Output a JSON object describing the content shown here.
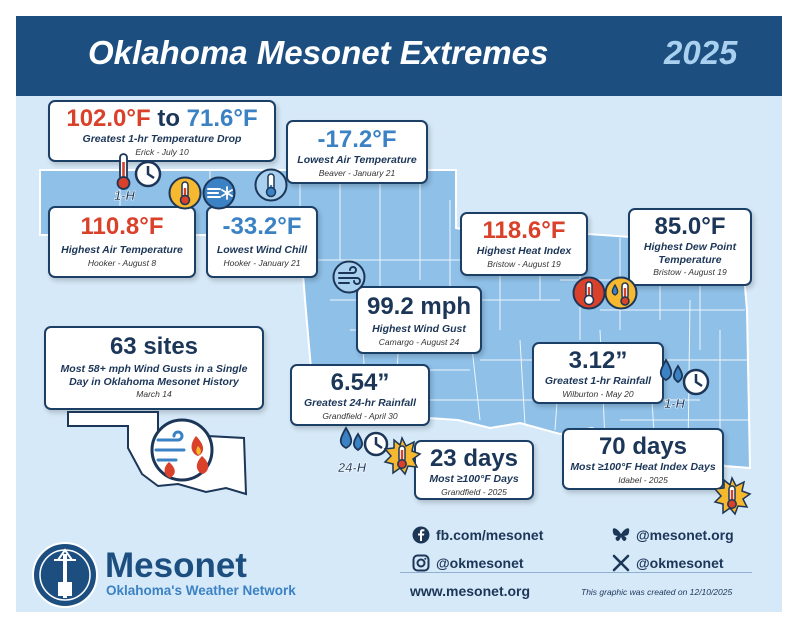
{
  "header": {
    "title": "Oklahoma Mesonet Extremes",
    "year": "2025"
  },
  "colors": {
    "header_bg": "#1c4f80",
    "panel_bg": "#d6e9f8",
    "map_fill": "#8fc0e8",
    "hot": "#d9412a",
    "cold": "#3b82c4",
    "navy": "#1c3658",
    "icon_yellow": "#f5b82e"
  },
  "cards": {
    "temp_drop": {
      "value_high": "102.0°F",
      "connector": "to",
      "value_low": "71.6°F",
      "label": "Greatest 1-hr Temperature Drop",
      "sub": "Erick - July 10"
    },
    "low_air": {
      "value": "-17.2°F",
      "label": "Lowest Air Temperature",
      "sub": "Beaver - January 21"
    },
    "high_air": {
      "value": "110.8°F",
      "label": "Highest Air Temperature",
      "sub": "Hooker - August 8"
    },
    "wind_chill": {
      "value": "-33.2°F",
      "label": "Lowest Wind Chill",
      "sub": "Hooker - January 21"
    },
    "heat_index": {
      "value": "118.6°F",
      "label": "Highest Heat Index",
      "sub": "Bristow - August 19"
    },
    "dew_point": {
      "value": "85.0°F",
      "label": "Highest Dew Point Temperature",
      "sub": "Bristow - August 19"
    },
    "wind_gust": {
      "value": "99.2 mph",
      "label": "Highest Wind Gust",
      "sub": "Camargo - August 24"
    },
    "sites": {
      "value": "63 sites",
      "label": "Most 58+ mph Wind Gusts in a Single Day in Oklahoma Mesonet History",
      "sub": "March 14"
    },
    "rain_1hr": {
      "value": "3.12”",
      "label": "Greatest 1-hr Rainfall",
      "sub": "Wilburton - May 20"
    },
    "rain_24hr": {
      "value": "6.54”",
      "label": "Greatest 24-hr Rainfall",
      "sub": "Grandfield - April 30"
    },
    "days_100": {
      "value": "23 days",
      "label": "Most ≥100°F Days",
      "sub": "Grandfield - 2025"
    },
    "days_hi_100": {
      "value": "70 days",
      "label": "Most ≥100°F Heat Index Days",
      "sub": "Idabel - 2025"
    }
  },
  "icon_labels": {
    "one_hour": "1-H",
    "one_hour_rain": "1-H",
    "twenty_four_hour": "24-H"
  },
  "icons": [
    "thermometer-clock-icon",
    "thermometer-hot-icon",
    "wind-snowflake-icon",
    "thermometer-cold-icon",
    "wind-icon",
    "dewpoint-drop-icon",
    "rain-clock-icon",
    "sun-thermometer-icon",
    "wind-fire-oklahoma-icon"
  ],
  "footer": {
    "facebook": "fb.com/mesonet",
    "bluesky": "@mesonet.org",
    "instagram": "@okmesonet",
    "x": "@okmesonet",
    "website": "www.mesonet.org",
    "created": "This graphic was created on 12/10/2025"
  },
  "logo": {
    "wordmark": "Mesonet",
    "tagline": "Oklahoma's Weather Network"
  }
}
